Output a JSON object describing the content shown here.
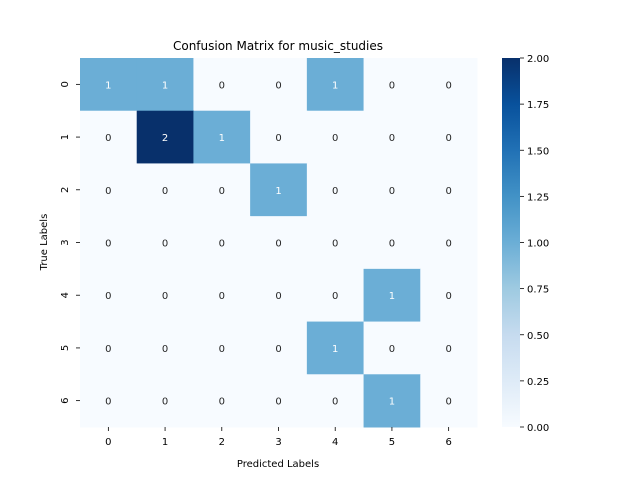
{
  "chart_data": {
    "type": "heatmap",
    "title": "Confusion Matrix for music_studies",
    "xlabel": "Predicted Labels",
    "ylabel": "True Labels",
    "x_categories": [
      "0",
      "1",
      "2",
      "3",
      "4",
      "5",
      "6"
    ],
    "y_categories": [
      "0",
      "1",
      "2",
      "3",
      "4",
      "5",
      "6"
    ],
    "matrix": [
      [
        1,
        1,
        0,
        0,
        1,
        0,
        0
      ],
      [
        0,
        2,
        1,
        0,
        0,
        0,
        0
      ],
      [
        0,
        0,
        0,
        1,
        0,
        0,
        0
      ],
      [
        0,
        0,
        0,
        0,
        0,
        0,
        0
      ],
      [
        0,
        0,
        0,
        0,
        0,
        1,
        0
      ],
      [
        0,
        0,
        0,
        0,
        1,
        0,
        0
      ],
      [
        0,
        0,
        0,
        0,
        0,
        1,
        0
      ]
    ],
    "colormap": "Blues",
    "vmin": 0,
    "vmax": 2,
    "colorbar_ticks": [
      "0.00",
      "0.25",
      "0.50",
      "0.75",
      "1.00",
      "1.25",
      "1.50",
      "1.75",
      "2.00"
    ],
    "colors": {
      "min": "#f7fbff",
      "mid": "#6baed6",
      "max": "#08306b"
    }
  }
}
